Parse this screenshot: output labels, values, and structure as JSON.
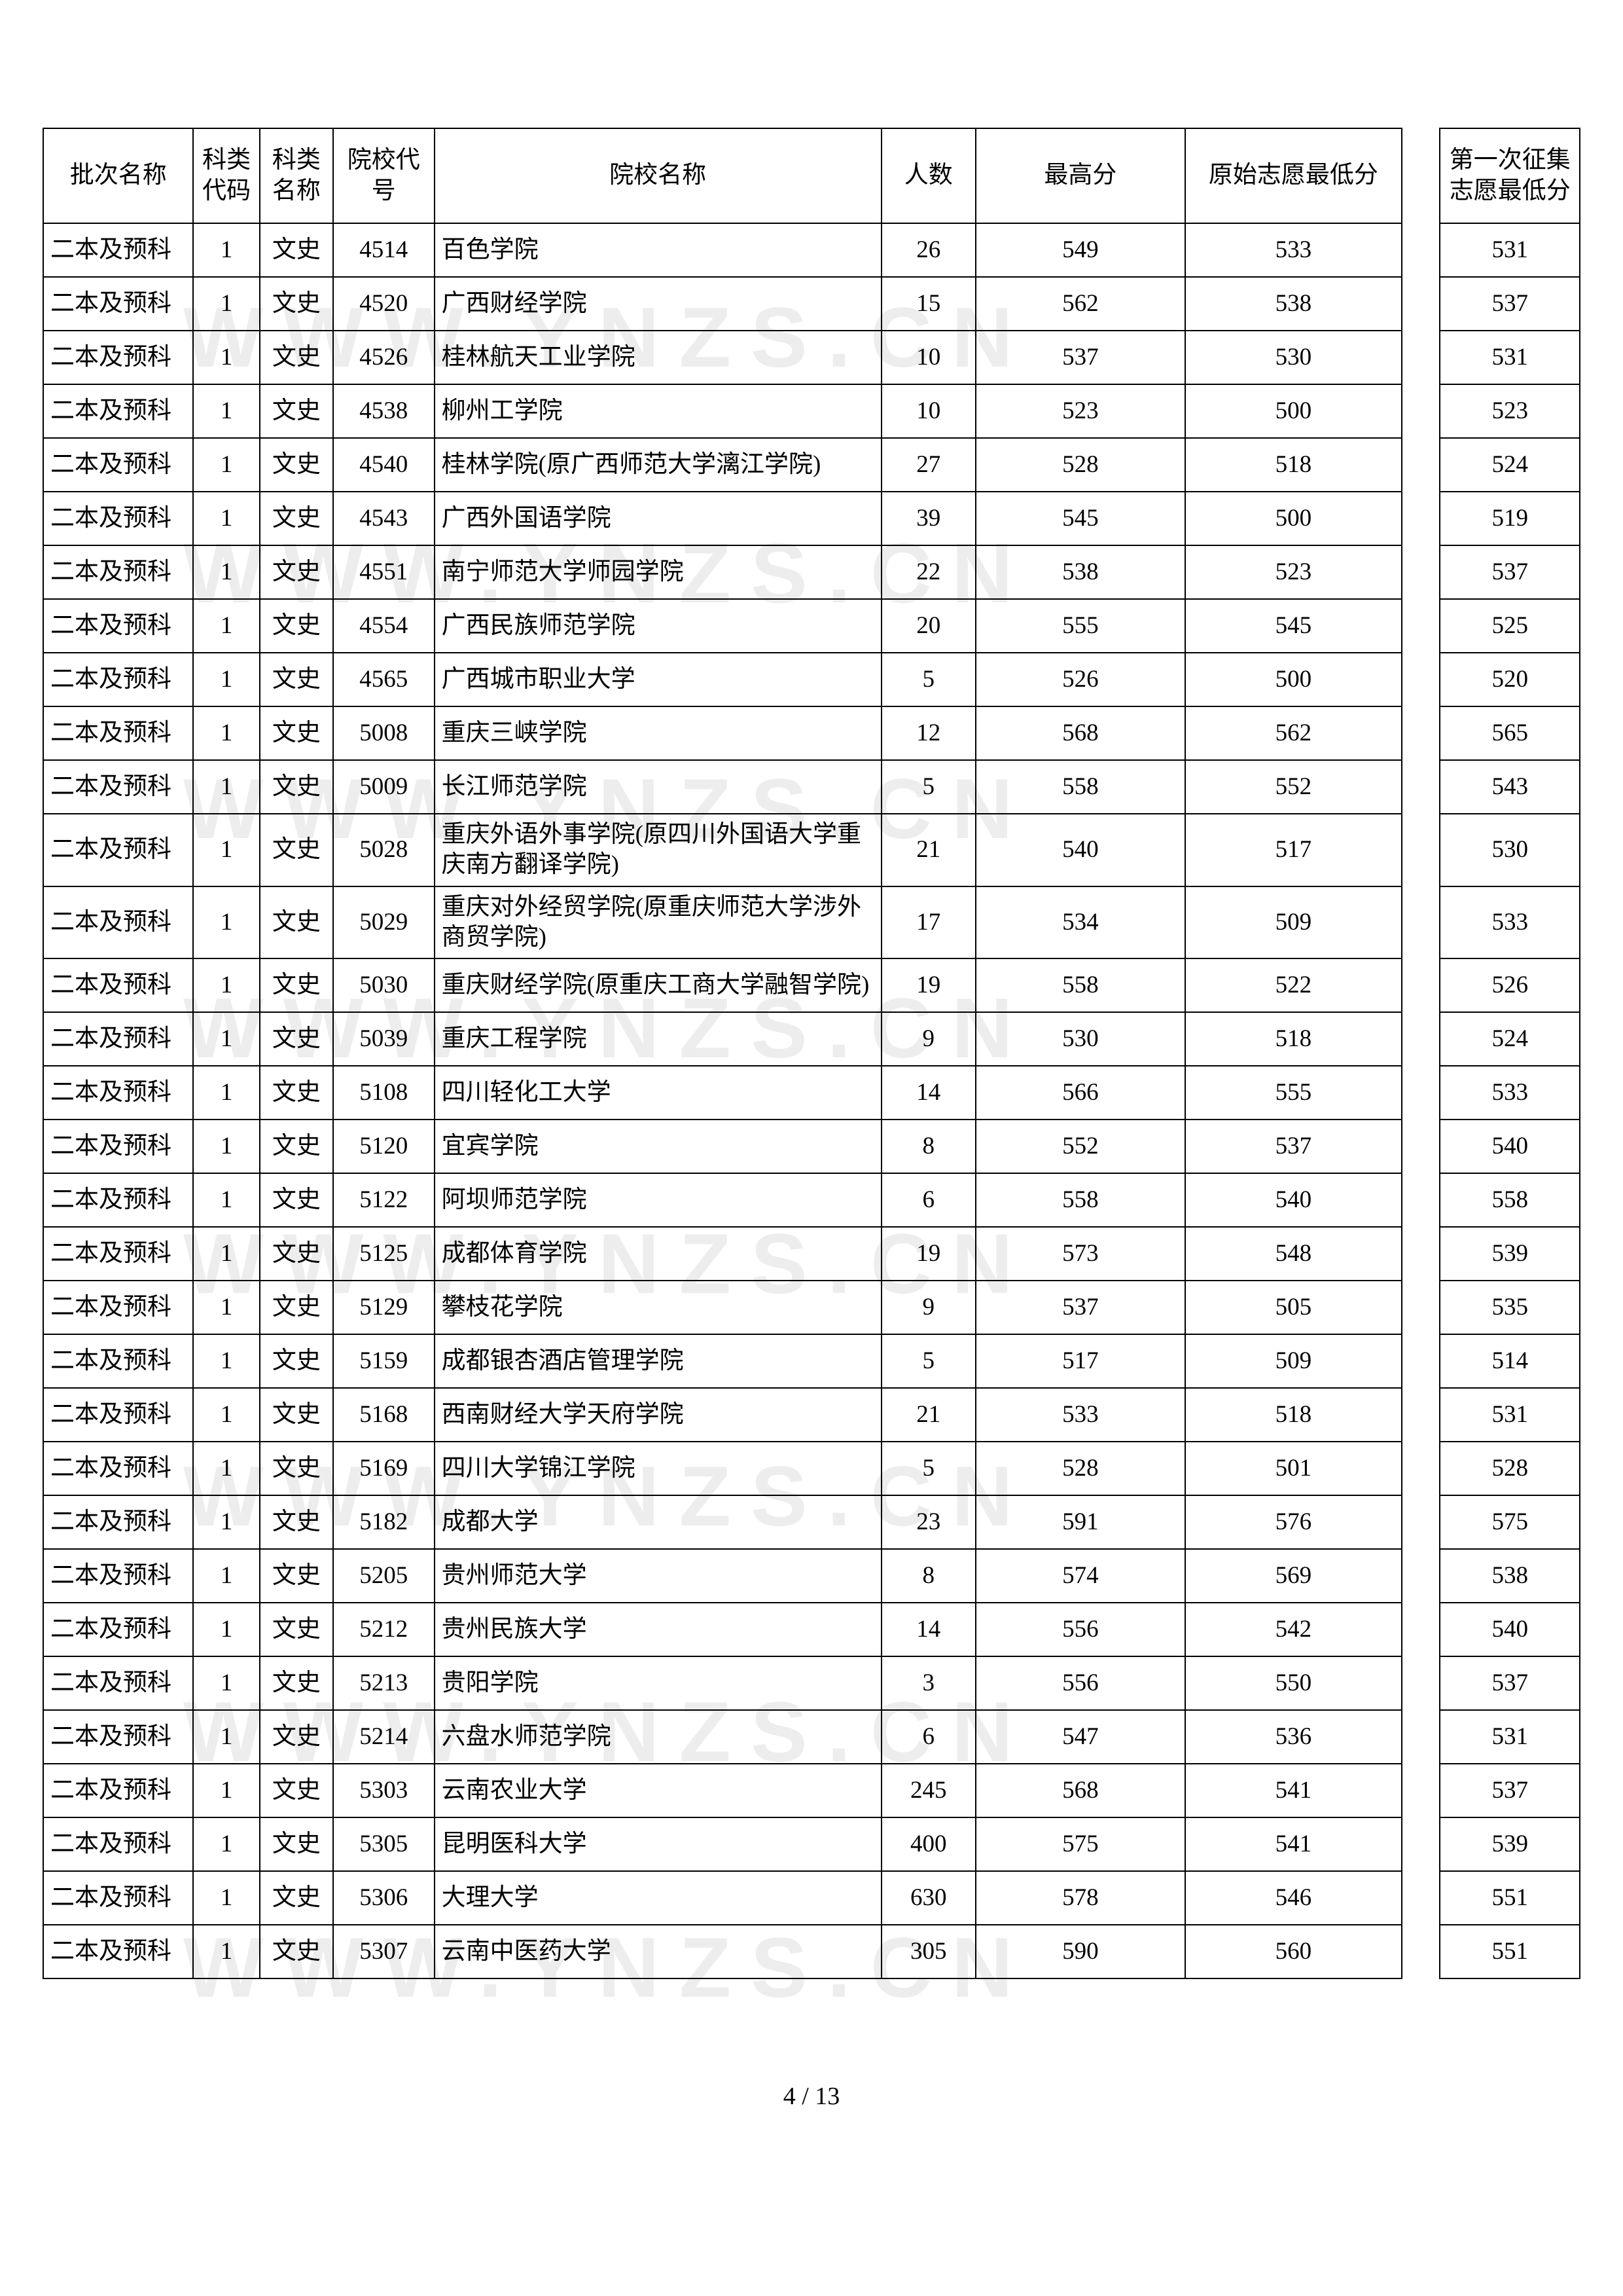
{
  "watermark_text": "WWW.YNZS.CN",
  "watermark_color": "#dcdcdc",
  "page_number": "4 / 13",
  "table": {
    "columns": [
      {
        "key": "batch",
        "label": "批次名称",
        "class": "col-batch",
        "align": "left"
      },
      {
        "key": "cat_code",
        "label": "科类代码",
        "class": "col-cat-code",
        "align": "center"
      },
      {
        "key": "cat_name",
        "label": "科类名称",
        "class": "col-cat-name",
        "align": "center"
      },
      {
        "key": "school_code",
        "label": "院校代号",
        "class": "col-school-code",
        "align": "center"
      },
      {
        "key": "school_name",
        "label": "院校名称",
        "class": "col-school-name",
        "align": "left"
      },
      {
        "key": "count",
        "label": "人数",
        "class": "col-count",
        "align": "center"
      },
      {
        "key": "max",
        "label": "最高分",
        "class": "col-max",
        "align": "center"
      },
      {
        "key": "orig_min",
        "label": "原始志愿最低分",
        "class": "col-orig-min",
        "align": "center"
      },
      {
        "key": "gap",
        "label": "",
        "class": "col-gap",
        "align": "center"
      },
      {
        "key": "first_min",
        "label": "第一次征集志愿最低分",
        "class": "col-first-min",
        "align": "center"
      }
    ],
    "rows": [
      {
        "batch": "二本及预科",
        "cat_code": "1",
        "cat_name": "文史",
        "school_code": "4514",
        "school_name": "百色学院",
        "count": "26",
        "max": "549",
        "orig_min": "533",
        "first_min": "531"
      },
      {
        "batch": "二本及预科",
        "cat_code": "1",
        "cat_name": "文史",
        "school_code": "4520",
        "school_name": "广西财经学院",
        "count": "15",
        "max": "562",
        "orig_min": "538",
        "first_min": "537"
      },
      {
        "batch": "二本及预科",
        "cat_code": "1",
        "cat_name": "文史",
        "school_code": "4526",
        "school_name": "桂林航天工业学院",
        "count": "10",
        "max": "537",
        "orig_min": "530",
        "first_min": "531"
      },
      {
        "batch": "二本及预科",
        "cat_code": "1",
        "cat_name": "文史",
        "school_code": "4538",
        "school_name": "柳州工学院",
        "count": "10",
        "max": "523",
        "orig_min": "500",
        "first_min": "523"
      },
      {
        "batch": "二本及预科",
        "cat_code": "1",
        "cat_name": "文史",
        "school_code": "4540",
        "school_name": "桂林学院(原广西师范大学漓江学院)",
        "count": "27",
        "max": "528",
        "orig_min": "518",
        "first_min": "524"
      },
      {
        "batch": "二本及预科",
        "cat_code": "1",
        "cat_name": "文史",
        "school_code": "4543",
        "school_name": "广西外国语学院",
        "count": "39",
        "max": "545",
        "orig_min": "500",
        "first_min": "519"
      },
      {
        "batch": "二本及预科",
        "cat_code": "1",
        "cat_name": "文史",
        "school_code": "4551",
        "school_name": "南宁师范大学师园学院",
        "count": "22",
        "max": "538",
        "orig_min": "523",
        "first_min": "537"
      },
      {
        "batch": "二本及预科",
        "cat_code": "1",
        "cat_name": "文史",
        "school_code": "4554",
        "school_name": "广西民族师范学院",
        "count": "20",
        "max": "555",
        "orig_min": "545",
        "first_min": "525"
      },
      {
        "batch": "二本及预科",
        "cat_code": "1",
        "cat_name": "文史",
        "school_code": "4565",
        "school_name": "广西城市职业大学",
        "count": "5",
        "max": "526",
        "orig_min": "500",
        "first_min": "520"
      },
      {
        "batch": "二本及预科",
        "cat_code": "1",
        "cat_name": "文史",
        "school_code": "5008",
        "school_name": "重庆三峡学院",
        "count": "12",
        "max": "568",
        "orig_min": "562",
        "first_min": "565"
      },
      {
        "batch": "二本及预科",
        "cat_code": "1",
        "cat_name": "文史",
        "school_code": "5009",
        "school_name": "长江师范学院",
        "count": "5",
        "max": "558",
        "orig_min": "552",
        "first_min": "543"
      },
      {
        "batch": "二本及预科",
        "cat_code": "1",
        "cat_name": "文史",
        "school_code": "5028",
        "school_name": "重庆外语外事学院(原四川外国语大学重庆南方翻译学院)",
        "count": "21",
        "max": "540",
        "orig_min": "517",
        "first_min": "530"
      },
      {
        "batch": "二本及预科",
        "cat_code": "1",
        "cat_name": "文史",
        "school_code": "5029",
        "school_name": "重庆对外经贸学院(原重庆师范大学涉外商贸学院)",
        "count": "17",
        "max": "534",
        "orig_min": "509",
        "first_min": "533"
      },
      {
        "batch": "二本及预科",
        "cat_code": "1",
        "cat_name": "文史",
        "school_code": "5030",
        "school_name": "重庆财经学院(原重庆工商大学融智学院)",
        "count": "19",
        "max": "558",
        "orig_min": "522",
        "first_min": "526"
      },
      {
        "batch": "二本及预科",
        "cat_code": "1",
        "cat_name": "文史",
        "school_code": "5039",
        "school_name": "重庆工程学院",
        "count": "9",
        "max": "530",
        "orig_min": "518",
        "first_min": "524"
      },
      {
        "batch": "二本及预科",
        "cat_code": "1",
        "cat_name": "文史",
        "school_code": "5108",
        "school_name": "四川轻化工大学",
        "count": "14",
        "max": "566",
        "orig_min": "555",
        "first_min": "533"
      },
      {
        "batch": "二本及预科",
        "cat_code": "1",
        "cat_name": "文史",
        "school_code": "5120",
        "school_name": "宜宾学院",
        "count": "8",
        "max": "552",
        "orig_min": "537",
        "first_min": "540"
      },
      {
        "batch": "二本及预科",
        "cat_code": "1",
        "cat_name": "文史",
        "school_code": "5122",
        "school_name": "阿坝师范学院",
        "count": "6",
        "max": "558",
        "orig_min": "540",
        "first_min": "558"
      },
      {
        "batch": "二本及预科",
        "cat_code": "1",
        "cat_name": "文史",
        "school_code": "5125",
        "school_name": "成都体育学院",
        "count": "19",
        "max": "573",
        "orig_min": "548",
        "first_min": "539"
      },
      {
        "batch": "二本及预科",
        "cat_code": "1",
        "cat_name": "文史",
        "school_code": "5129",
        "school_name": "攀枝花学院",
        "count": "9",
        "max": "537",
        "orig_min": "505",
        "first_min": "535"
      },
      {
        "batch": "二本及预科",
        "cat_code": "1",
        "cat_name": "文史",
        "school_code": "5159",
        "school_name": "成都银杏酒店管理学院",
        "count": "5",
        "max": "517",
        "orig_min": "509",
        "first_min": "514"
      },
      {
        "batch": "二本及预科",
        "cat_code": "1",
        "cat_name": "文史",
        "school_code": "5168",
        "school_name": "西南财经大学天府学院",
        "count": "21",
        "max": "533",
        "orig_min": "518",
        "first_min": "531"
      },
      {
        "batch": "二本及预科",
        "cat_code": "1",
        "cat_name": "文史",
        "school_code": "5169",
        "school_name": "四川大学锦江学院",
        "count": "5",
        "max": "528",
        "orig_min": "501",
        "first_min": "528"
      },
      {
        "batch": "二本及预科",
        "cat_code": "1",
        "cat_name": "文史",
        "school_code": "5182",
        "school_name": "成都大学",
        "count": "23",
        "max": "591",
        "orig_min": "576",
        "first_min": "575"
      },
      {
        "batch": "二本及预科",
        "cat_code": "1",
        "cat_name": "文史",
        "school_code": "5205",
        "school_name": "贵州师范大学",
        "count": "8",
        "max": "574",
        "orig_min": "569",
        "first_min": "538"
      },
      {
        "batch": "二本及预科",
        "cat_code": "1",
        "cat_name": "文史",
        "school_code": "5212",
        "school_name": "贵州民族大学",
        "count": "14",
        "max": "556",
        "orig_min": "542",
        "first_min": "540"
      },
      {
        "batch": "二本及预科",
        "cat_code": "1",
        "cat_name": "文史",
        "school_code": "5213",
        "school_name": "贵阳学院",
        "count": "3",
        "max": "556",
        "orig_min": "550",
        "first_min": "537"
      },
      {
        "batch": "二本及预科",
        "cat_code": "1",
        "cat_name": "文史",
        "school_code": "5214",
        "school_name": "六盘水师范学院",
        "count": "6",
        "max": "547",
        "orig_min": "536",
        "first_min": "531"
      },
      {
        "batch": "二本及预科",
        "cat_code": "1",
        "cat_name": "文史",
        "school_code": "5303",
        "school_name": "云南农业大学",
        "count": "245",
        "max": "568",
        "orig_min": "541",
        "first_min": "537"
      },
      {
        "batch": "二本及预科",
        "cat_code": "1",
        "cat_name": "文史",
        "school_code": "5305",
        "school_name": "昆明医科大学",
        "count": "400",
        "max": "575",
        "orig_min": "541",
        "first_min": "539"
      },
      {
        "batch": "二本及预科",
        "cat_code": "1",
        "cat_name": "文史",
        "school_code": "5306",
        "school_name": "大理大学",
        "count": "630",
        "max": "578",
        "orig_min": "546",
        "first_min": "551"
      },
      {
        "batch": "二本及预科",
        "cat_code": "1",
        "cat_name": "文史",
        "school_code": "5307",
        "school_name": "云南中医药大学",
        "count": "305",
        "max": "590",
        "orig_min": "560",
        "first_min": "551"
      }
    ]
  }
}
